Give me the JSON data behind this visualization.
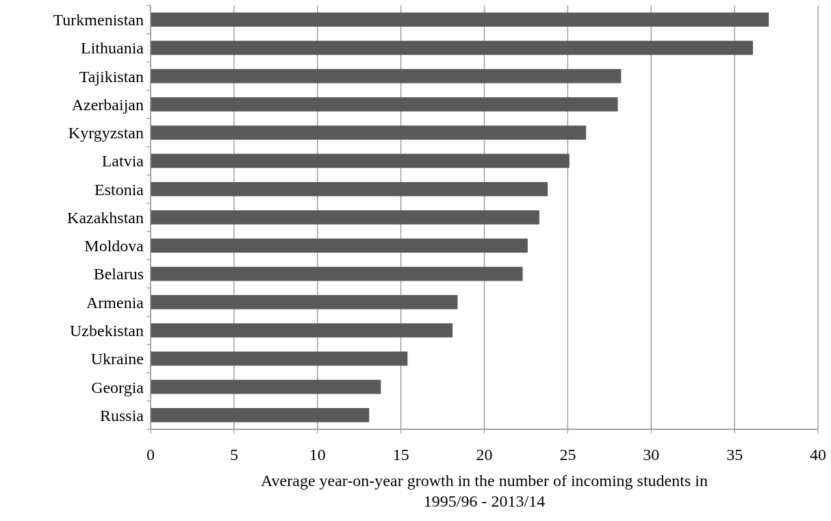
{
  "chart_data": {
    "type": "bar",
    "orientation": "horizontal",
    "xlabel": "Average year-on-year growth in the number of incoming students in 1995/96 - 2013/14",
    "categories": [
      "Turkmenistan",
      "Lithuania",
      "Tajikistan",
      "Azerbaijan",
      "Kyrgyzstan",
      "Latvia",
      "Estonia",
      "Kazakhstan",
      "Moldova",
      "Belarus",
      "Armenia",
      "Uzbekistan",
      "Ukraine",
      "Georgia",
      "Russia"
    ],
    "values": [
      37.05,
      36.1,
      28.2,
      28.0,
      26.1,
      25.1,
      23.8,
      23.3,
      22.6,
      22.3,
      18.4,
      18.1,
      15.4,
      13.8,
      13.1
    ],
    "color": "#595959",
    "xlim": [
      0,
      40
    ],
    "xticks": [
      0,
      5,
      10,
      15,
      20,
      25,
      30,
      35,
      40
    ],
    "grid": "x"
  }
}
